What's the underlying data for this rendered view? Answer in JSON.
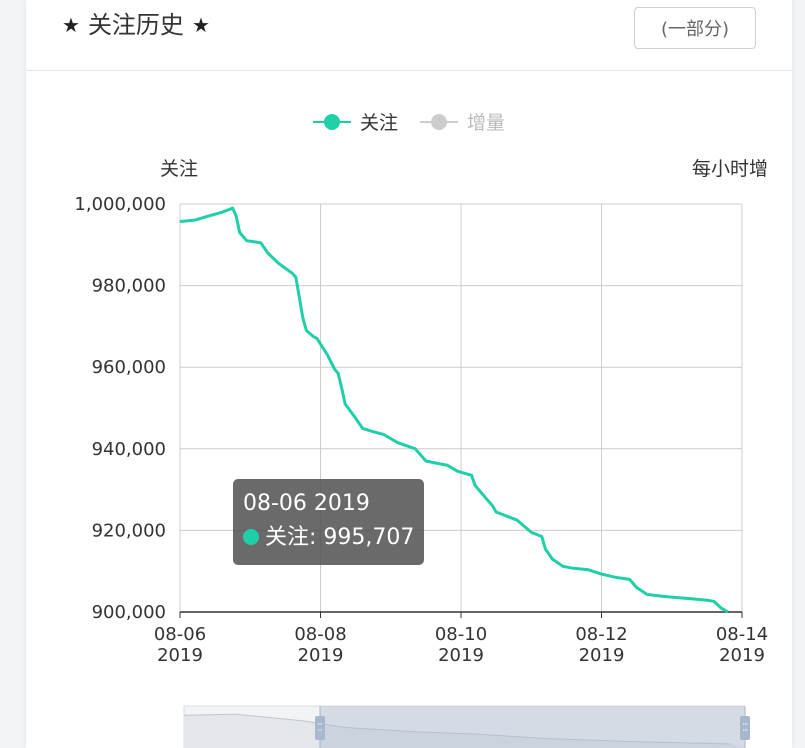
{
  "header": {
    "title": "关注历史",
    "part_button": "(一部分)",
    "star_icon": "★"
  },
  "colors": {
    "series_main": "#1fcfa8",
    "series_inactive": "#cccccc",
    "axis": "#333333",
    "grid": "#cccccc"
  },
  "tooltip": {
    "date": "08-06 2019",
    "label": "关注: 995,707"
  },
  "chart_data": {
    "type": "line",
    "legend": {
      "position": "top-center",
      "items": [
        {
          "name": "关注",
          "active": true
        },
        {
          "name": "增量",
          "active": false
        }
      ]
    },
    "ylabel_left": "关注",
    "ylabel_right": "每小时增",
    "ylim": [
      900000,
      1000000
    ],
    "yticks": [
      "1,000,000",
      "980,000",
      "960,000",
      "940,000",
      "920,000",
      "900,000"
    ],
    "xlim": [
      "08-06 2019",
      "08-14 2019"
    ],
    "xticks": [
      {
        "date": "08-06",
        "year": "2019"
      },
      {
        "date": "08-08",
        "year": "2019"
      },
      {
        "date": "08-10",
        "year": "2019"
      },
      {
        "date": "08-12",
        "year": "2019"
      },
      {
        "date": "08-14",
        "year": "2019"
      }
    ],
    "grid": true,
    "series": [
      {
        "name": "关注",
        "points": [
          [
            0,
            995707
          ],
          [
            0.2,
            996000
          ],
          [
            0.4,
            997000
          ],
          [
            0.6,
            998000
          ],
          [
            0.75,
            999000
          ],
          [
            0.8,
            997000
          ],
          [
            0.85,
            993000
          ],
          [
            0.95,
            991000
          ],
          [
            1.15,
            990500
          ],
          [
            1.25,
            988000
          ],
          [
            1.4,
            985500
          ],
          [
            1.6,
            983000
          ],
          [
            1.65,
            982000
          ],
          [
            1.7,
            977000
          ],
          [
            1.75,
            972000
          ],
          [
            1.8,
            969000
          ],
          [
            1.9,
            967500
          ],
          [
            1.95,
            967000
          ],
          [
            2.1,
            963000
          ],
          [
            2.2,
            959500
          ],
          [
            2.25,
            958500
          ],
          [
            2.3,
            955000
          ],
          [
            2.35,
            951000
          ],
          [
            2.5,
            947500
          ],
          [
            2.6,
            945000
          ],
          [
            2.75,
            944200
          ],
          [
            2.9,
            943500
          ],
          [
            3.1,
            941500
          ],
          [
            3.35,
            940000
          ],
          [
            3.5,
            937000
          ],
          [
            3.7,
            936300
          ],
          [
            3.8,
            936000
          ],
          [
            3.95,
            934500
          ],
          [
            4.15,
            933500
          ],
          [
            4.2,
            931000
          ],
          [
            4.35,
            928000
          ],
          [
            4.45,
            926000
          ],
          [
            4.5,
            924500
          ],
          [
            4.65,
            923500
          ],
          [
            4.8,
            922500
          ],
          [
            4.9,
            921000
          ],
          [
            5.0,
            919500
          ],
          [
            5.15,
            918500
          ],
          [
            5.2,
            915500
          ],
          [
            5.3,
            913000
          ],
          [
            5.45,
            911200
          ],
          [
            5.6,
            910700
          ],
          [
            5.8,
            910400
          ],
          [
            6.0,
            909300
          ],
          [
            6.2,
            908500
          ],
          [
            6.4,
            908000
          ],
          [
            6.5,
            906000
          ],
          [
            6.65,
            904300
          ],
          [
            6.9,
            903800
          ],
          [
            7.1,
            903500
          ],
          [
            7.3,
            903200
          ],
          [
            7.5,
            902900
          ],
          [
            7.6,
            902600
          ],
          [
            7.7,
            901000
          ],
          [
            7.8,
            900000
          ]
        ]
      }
    ],
    "minimap": {
      "points": [
        [
          0,
          995707
        ],
        [
          0.75,
          999000
        ],
        [
          1.7,
          977000
        ],
        [
          2.3,
          955000
        ],
        [
          3.35,
          940000
        ],
        [
          4.15,
          933500
        ],
        [
          5.15,
          918500
        ],
        [
          6.4,
          908000
        ],
        [
          7.8,
          900000
        ]
      ]
    }
  }
}
